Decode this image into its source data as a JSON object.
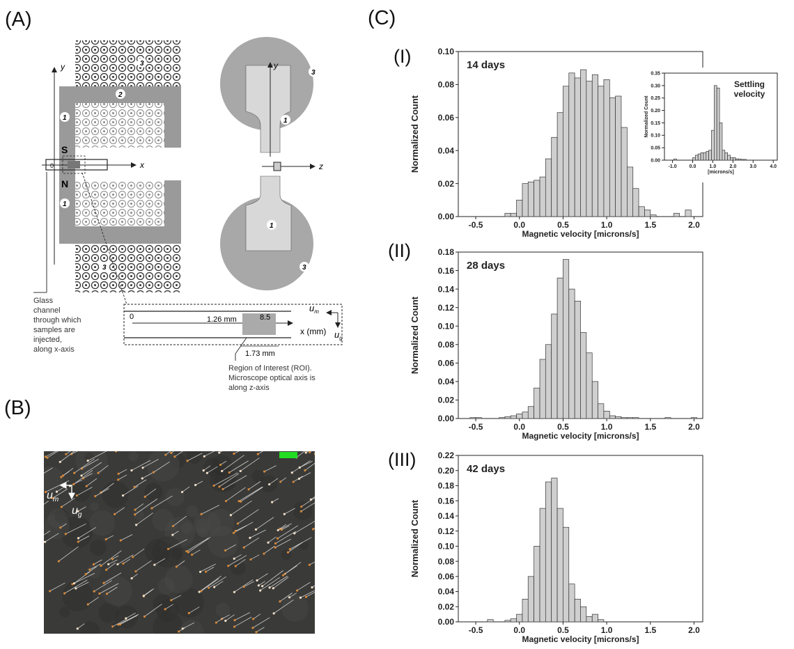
{
  "panels": {
    "a": "(A)",
    "b": "(B)",
    "c": "(C)"
  },
  "schematic": {
    "axis_x": "x",
    "axis_y": "y",
    "axis_z": "z",
    "pole_s": "S",
    "pole_n": "N",
    "origin": "0",
    "num_1": "1",
    "num_2": "2",
    "num_3": "3",
    "channel_note": [
      "Glass",
      "channel",
      "through which",
      "samples are",
      "injected,",
      "along x-axis"
    ],
    "roi_note": [
      "Region of Interest (ROI).",
      "Microscope optical axis is",
      "along z-axis"
    ],
    "dist_126": "1.26 mm",
    "dist_85": "8.5",
    "dist_173": "1.73 mm",
    "x_mm": "x (mm)",
    "um": "u",
    "um_sub": "m",
    "ug": "u",
    "ug_sub": "g"
  },
  "micrograph": {
    "um": "u",
    "um_sub": "m",
    "ug": "u",
    "ug_sub": "g",
    "badge_color": "#22dd22"
  },
  "chart_data": [
    {
      "type": "bar",
      "roman": "(I)",
      "title": "14 days",
      "xlabel": "Magnetic velocity [microns/s]",
      "ylabel": "Normalized Count",
      "xlim": [
        -0.7,
        2.1
      ],
      "ylim": [
        0,
        0.1
      ],
      "xticks": [
        "-0.5",
        "0.0",
        "0.5",
        "1.0",
        "1.5",
        "2.0"
      ],
      "xtick_values": [
        -0.5,
        0.0,
        0.5,
        1.0,
        1.5,
        2.0
      ],
      "yticks": [
        "0.00",
        "0.02",
        "0.04",
        "0.06",
        "0.08",
        "0.10"
      ],
      "ytick_values": [
        0.0,
        0.02,
        0.04,
        0.06,
        0.08,
        0.1
      ],
      "bin_width": 0.0667,
      "bin_centers": [
        -0.133,
        -0.067,
        0.0,
        0.067,
        0.133,
        0.2,
        0.267,
        0.333,
        0.4,
        0.467,
        0.533,
        0.6,
        0.667,
        0.733,
        0.8,
        0.867,
        0.933,
        1.0,
        1.067,
        1.133,
        1.2,
        1.267,
        1.333,
        1.4,
        1.467,
        1.533,
        1.6,
        1.667,
        1.733,
        1.8,
        1.867,
        1.933
      ],
      "values": [
        0.002,
        0.002,
        0.01,
        0.02,
        0.021,
        0.022,
        0.024,
        0.035,
        0.048,
        0.063,
        0.079,
        0.087,
        0.084,
        0.089,
        0.082,
        0.086,
        0.079,
        0.083,
        0.072,
        0.073,
        0.054,
        0.03,
        0.017,
        0.006,
        0.004,
        0.001,
        0.0,
        0.0,
        0.0,
        0.002,
        0.0,
        0.004
      ]
    },
    {
      "type": "bar",
      "roman": "(II)",
      "title": "28 days",
      "xlabel": "Magnetic velocity [microns/s]",
      "ylabel": "Normalized Count",
      "xlim": [
        -0.7,
        2.1
      ],
      "ylim": [
        0,
        0.18
      ],
      "xticks": [
        "-0.5",
        "0.0",
        "0.5",
        "1.0",
        "1.5",
        "2.0"
      ],
      "xtick_values": [
        -0.5,
        0.0,
        0.5,
        1.0,
        1.5,
        2.0
      ],
      "yticks": [
        "0.00",
        "0.02",
        "0.04",
        "0.06",
        "0.08",
        "0.10",
        "0.12",
        "0.14",
        "0.16",
        "0.18"
      ],
      "ytick_values": [
        0.0,
        0.02,
        0.04,
        0.06,
        0.08,
        0.1,
        0.12,
        0.14,
        0.16,
        0.18
      ],
      "bin_width": 0.0667,
      "bin_centers": [
        -0.533,
        -0.467,
        -0.2,
        -0.133,
        -0.067,
        0.0,
        0.067,
        0.133,
        0.2,
        0.267,
        0.333,
        0.4,
        0.467,
        0.533,
        0.6,
        0.667,
        0.733,
        0.8,
        0.867,
        0.933,
        1.0,
        1.067,
        1.133,
        1.2,
        1.267,
        1.333,
        1.7,
        2.0
      ],
      "values": [
        0.001,
        0.001,
        0.001,
        0.002,
        0.003,
        0.005,
        0.007,
        0.013,
        0.033,
        0.064,
        0.08,
        0.113,
        0.152,
        0.172,
        0.14,
        0.127,
        0.093,
        0.071,
        0.04,
        0.016,
        0.008,
        0.003,
        0.002,
        0.001,
        0.001,
        0.001,
        0.001,
        0.001
      ]
    },
    {
      "type": "bar",
      "roman": "(III)",
      "title": "42 days",
      "xlabel": "Magnetic velocity [microns/s]",
      "ylabel": "Normalized Count",
      "xlim": [
        -0.7,
        2.1
      ],
      "ylim": [
        0,
        0.22
      ],
      "xticks": [
        "-0.5",
        "0.0",
        "0.5",
        "1.0",
        "1.5",
        "2.0"
      ],
      "xtick_values": [
        -0.5,
        0.0,
        0.5,
        1.0,
        1.5,
        2.0
      ],
      "yticks": [
        "0.00",
        "0.02",
        "0.04",
        "0.06",
        "0.08",
        "0.10",
        "0.12",
        "0.14",
        "0.16",
        "0.18",
        "0.20",
        "0.22"
      ],
      "ytick_values": [
        0.0,
        0.02,
        0.04,
        0.06,
        0.08,
        0.1,
        0.12,
        0.14,
        0.16,
        0.18,
        0.2,
        0.22
      ],
      "bin_width": 0.0667,
      "bin_centers": [
        -0.333,
        -0.133,
        -0.067,
        0.0,
        0.067,
        0.133,
        0.2,
        0.267,
        0.333,
        0.4,
        0.467,
        0.533,
        0.6,
        0.667,
        0.733,
        0.8,
        0.867,
        0.933
      ],
      "values": [
        0.003,
        0.002,
        0.004,
        0.01,
        0.03,
        0.06,
        0.1,
        0.15,
        0.185,
        0.19,
        0.15,
        0.125,
        0.05,
        0.03,
        0.02,
        0.007,
        0.01,
        0.003
      ]
    }
  ],
  "inset_chart": {
    "type": "bar",
    "title": "Settling velocity",
    "xlabel": "[microns/s]",
    "ylabel": "Normalized Count",
    "xlim": [
      -1.4,
      4.2
    ],
    "ylim": [
      0,
      0.35
    ],
    "xticks": [
      "-1.0",
      "0.0",
      "1.0",
      "2.0",
      "3.0",
      "4.0"
    ],
    "xtick_values": [
      -1.0,
      0.0,
      1.0,
      2.0,
      3.0,
      4.0
    ],
    "yticks": [
      "0.00",
      "0.05",
      "0.10",
      "0.15",
      "0.20",
      "0.25",
      "0.30",
      "0.35"
    ],
    "ytick_values": [
      0.0,
      0.05,
      0.1,
      0.15,
      0.2,
      0.25,
      0.3,
      0.35
    ],
    "bin_width": 0.133,
    "bin_centers": [
      -0.867,
      0.067,
      0.2,
      0.333,
      0.467,
      0.6,
      0.733,
      0.867,
      1.0,
      1.133,
      1.267,
      1.4,
      1.533,
      1.667,
      1.8,
      1.933,
      2.067,
      2.2,
      2.333,
      2.467,
      2.6
    ],
    "values": [
      0.005,
      0.01,
      0.02,
      0.025,
      0.03,
      0.03,
      0.035,
      0.04,
      0.12,
      0.3,
      0.29,
      0.15,
      0.04,
      0.03,
      0.02,
      0.01,
      0.01,
      0.005,
      0.005,
      0.003,
      0.003
    ]
  }
}
